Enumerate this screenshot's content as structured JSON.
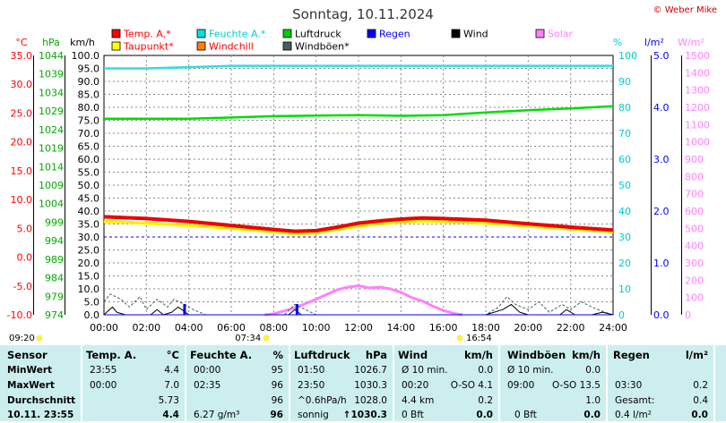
{
  "title": "Sonntag, 10.11.2024",
  "credit": "© Weber Mike",
  "axis_units": {
    "left1": "°C",
    "left2": "hPa",
    "left3": "km/h",
    "right1": "%",
    "right2": "l/m²",
    "right3": "W/m²"
  },
  "legend": [
    {
      "label": "Temp. A.*",
      "color": "#ff0000"
    },
    {
      "label": "Feuchte A.*",
      "color": "#00e0e0"
    },
    {
      "label": "Luftdruck",
      "color": "#00cc00"
    },
    {
      "label": "Regen",
      "color": "#0000ff"
    },
    {
      "label": "Wind",
      "color": "#000000"
    },
    {
      "label": "Solar",
      "color": "#ff80ff"
    },
    {
      "label": "Taupunkt*",
      "color": "#ffff00"
    },
    {
      "label": "Windchill",
      "color": "#ff8000"
    },
    {
      "label": "Windböen*",
      "color": "#406060"
    }
  ],
  "sun": {
    "sunrise": "07:34",
    "sunset": "16:54",
    "moonrise": "09:20"
  },
  "chart_data": {
    "type": "line",
    "title": "Sonntag, 10.11.2024",
    "x_ticks": [
      "00:00",
      "02:00",
      "04:00",
      "06:00",
      "08:00",
      "10:00",
      "12:00",
      "14:00",
      "16:00",
      "18:00",
      "20:00",
      "22:00",
      "24:00"
    ],
    "xlim": [
      0,
      24
    ],
    "axes": {
      "temp_c": {
        "range": [
          -10,
          35
        ],
        "ticks": [
          "35.0",
          "30.0",
          "25.0",
          "20.0",
          "15.0",
          "10.0",
          "5.0",
          "0.0",
          "-5.0",
          "-10.0"
        ]
      },
      "press_hpa": {
        "range": [
          974,
          1044
        ],
        "ticks": [
          "1044",
          "1039",
          "1034",
          "1029",
          "1024",
          "1019",
          "1014",
          "1009",
          "1004",
          "999",
          "994",
          "989",
          "984",
          "979",
          "974"
        ]
      },
      "wind_kmh": {
        "range": [
          0,
          100
        ],
        "ticks": [
          "100.0",
          "95.0",
          "90.0",
          "85.0",
          "80.0",
          "75.0",
          "70.0",
          "65.0",
          "60.0",
          "55.0",
          "50.0",
          "45.0",
          "40.0",
          "35.0",
          "30.0",
          "25.0",
          "20.0",
          "15.0",
          "10.0",
          "5.0",
          "0.0"
        ]
      },
      "hum_pct": {
        "range": [
          0,
          100
        ],
        "ticks": [
          "100",
          "90",
          "80",
          "70",
          "60",
          "50",
          "40",
          "30",
          "20",
          "10",
          "0"
        ]
      },
      "rain_lm2": {
        "range": [
          0,
          5
        ],
        "ticks": [
          "5.0",
          "4.0",
          "3.0",
          "2.0",
          "1.0",
          "0.0"
        ]
      },
      "solar_wm2": {
        "range": [
          0,
          1500
        ],
        "ticks": [
          "1500",
          "1400",
          "1300",
          "1200",
          "1100",
          "1000",
          "900",
          "800",
          "700",
          "600",
          "500",
          "400",
          "300",
          "200",
          "100",
          "0"
        ]
      }
    },
    "series": [
      {
        "name": "Temp. A.*",
        "axis": "temp_c",
        "x": [
          0,
          2,
          4,
          6,
          8,
          9,
          10,
          11,
          12,
          13,
          14,
          15,
          16,
          18,
          20,
          22,
          24
        ],
        "values": [
          7.0,
          6.7,
          6.2,
          5.5,
          4.8,
          4.5,
          4.6,
          5.2,
          5.9,
          6.3,
          6.6,
          6.8,
          6.7,
          6.4,
          5.8,
          5.2,
          4.7
        ]
      },
      {
        "name": "Taupunkt*",
        "axis": "temp_c",
        "x": [
          0,
          2,
          4,
          6,
          8,
          9,
          10,
          11,
          12,
          13,
          14,
          15,
          16,
          18,
          20,
          22,
          24
        ],
        "values": [
          6.2,
          5.9,
          5.5,
          5.0,
          4.4,
          4.1,
          4.2,
          4.8,
          5.4,
          5.8,
          6.1,
          6.3,
          6.2,
          5.9,
          5.4,
          4.9,
          4.4
        ]
      },
      {
        "name": "Feuchte A.*",
        "axis": "hum_pct",
        "x": [
          0,
          2,
          4,
          6,
          8,
          12,
          16,
          20,
          24
        ],
        "values": [
          95,
          95,
          95.5,
          96,
          96,
          96,
          96,
          96,
          96
        ]
      },
      {
        "name": "Luftdruck",
        "axis": "press_hpa",
        "x": [
          0,
          4,
          8,
          12,
          14,
          16,
          18,
          20,
          22,
          24
        ],
        "values": [
          1026.9,
          1026.9,
          1027.6,
          1027.9,
          1027.7,
          1027.9,
          1028.6,
          1029.2,
          1029.7,
          1030.3
        ]
      },
      {
        "name": "Regen",
        "axis": "wind_kmh",
        "x": [
          0,
          24
        ],
        "values": [
          0,
          0
        ]
      },
      {
        "name": "Windböen*",
        "axis": "wind_kmh",
        "x": [
          0,
          0.3,
          0.8,
          1.2,
          1.7,
          2.0,
          2.5,
          3.0,
          3.3,
          3.8,
          4.2,
          4.8,
          6,
          8.5,
          9,
          9.5,
          10,
          18,
          18.6,
          19,
          19.4,
          20,
          20.5,
          21,
          21.6,
          22,
          22.5,
          23,
          23.6,
          24
        ],
        "values": [
          5,
          8,
          6,
          3,
          7,
          2,
          6,
          3,
          6,
          4,
          2,
          0,
          0,
          0,
          4,
          2,
          0,
          0,
          3,
          7,
          4,
          2,
          5,
          1,
          4,
          2,
          5,
          3,
          1,
          0
        ]
      },
      {
        "name": "Wind",
        "axis": "wind_kmh",
        "x": [
          0,
          0.4,
          0.6,
          1,
          2.2,
          2.5,
          2.8,
          3.2,
          3.5,
          4,
          6,
          8.7,
          9,
          9.3,
          10,
          18,
          18.8,
          19.2,
          19.6,
          20,
          21.5,
          21.8,
          22.2,
          23,
          23.5,
          24
        ],
        "values": [
          0,
          3,
          1,
          0,
          0,
          2,
          0,
          1,
          3,
          0,
          0,
          0,
          2,
          0,
          0,
          0,
          2,
          4,
          1,
          0,
          0,
          2,
          0,
          0,
          1,
          0
        ]
      },
      {
        "name": "Solar",
        "axis": "solar_wm2",
        "x": [
          7.57,
          8,
          9,
          10,
          11,
          11.5,
          12,
          12.5,
          13,
          13.5,
          14,
          14.5,
          15,
          15.5,
          16,
          16.5,
          16.9
        ],
        "values": [
          0,
          5,
          40,
          90,
          145,
          160,
          168,
          155,
          160,
          150,
          130,
          100,
          80,
          50,
          25,
          8,
          0
        ]
      }
    ],
    "table": {
      "columns": [
        {
          "title": "Sensor"
        },
        {
          "title": "Temp. A.",
          "unit": "°C"
        },
        {
          "title": "Feuchte A.",
          "unit": "%"
        },
        {
          "title": "Luftdruck",
          "unit": "hPa"
        },
        {
          "title": "Wind",
          "unit": "km/h"
        },
        {
          "title": "Windböen",
          "unit": "km/h"
        },
        {
          "title": "Regen",
          "unit": "l/m²"
        }
      ],
      "rows": [
        {
          "label": "MinWert",
          "temp": [
            "23:55",
            "4.4"
          ],
          "hum": [
            "00:00",
            "95"
          ],
          "press": [
            "01:50",
            "1026.7"
          ],
          "wind": [
            "Ø 10 min.",
            "",
            "0.0"
          ],
          "gust": [
            "Ø 10 min.",
            "",
            "0.0"
          ],
          "rain": [
            "",
            ""
          ]
        },
        {
          "label": "MaxWert",
          "temp": [
            "00:00",
            "7.0"
          ],
          "hum": [
            "02:35",
            "96"
          ],
          "press": [
            "23:50",
            "1030.3"
          ],
          "wind": [
            "00:20",
            "O-SO 4.1",
            ""
          ],
          "gust": [
            "09:00",
            "O-SO 13.5",
            ""
          ],
          "rain": [
            "03:30",
            "0.2"
          ]
        },
        {
          "label": "Durchschnitt",
          "temp": [
            "",
            "5.73"
          ],
          "hum": [
            "",
            "96"
          ],
          "press": [
            "^0.6hPa/h",
            "1028.0"
          ],
          "wind": [
            "4.4 km",
            "",
            "0.2"
          ],
          "gust": [
            "",
            "",
            "1.0"
          ],
          "rain": [
            "Gesamt:",
            "0.4"
          ]
        },
        {
          "label": "10.11.  23:55",
          "temp": [
            "",
            "4.4"
          ],
          "hum": [
            "6.27 g/m³",
            "96"
          ],
          "press": [
            "sonnig",
            "↑1030.3"
          ],
          "wind": [
            "0 Bft",
            "",
            "0.0"
          ],
          "gust": [
            "0 Bft",
            "",
            "0.0"
          ],
          "rain": [
            "0.4 l/m²",
            "0.0"
          ]
        }
      ]
    }
  }
}
